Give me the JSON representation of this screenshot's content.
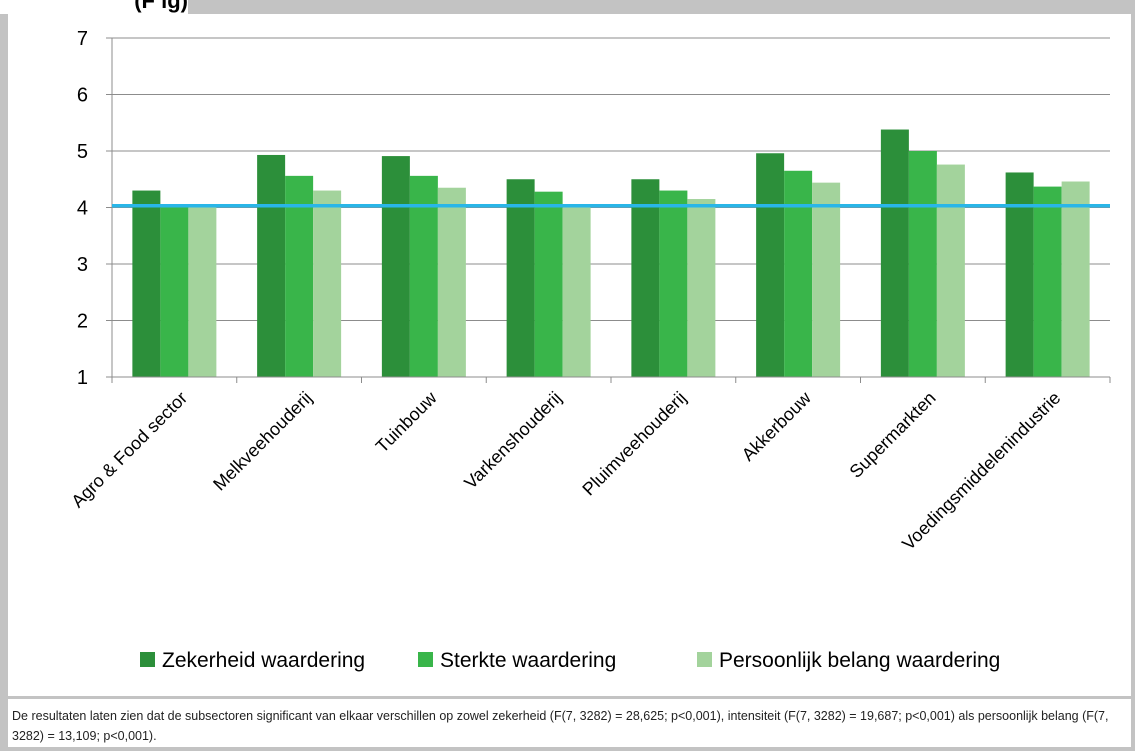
{
  "header": {
    "title_fragment": "(F ig)"
  },
  "chart_data": {
    "type": "bar",
    "categories": [
      "Agro & Food sector",
      "Melkveehouderij",
      "Tuinbouw",
      "Varkenshouderij",
      "Pluimveehouderij",
      "Akkerbouw",
      "Supermarkten",
      "Voedingsmiddelenindustrie"
    ],
    "series": [
      {
        "name": "Zekerheid waardering",
        "color": "#2c8f3a",
        "values": [
          4.3,
          4.93,
          4.91,
          4.5,
          4.5,
          4.96,
          5.38,
          4.62
        ]
      },
      {
        "name": "Sterkte waardering",
        "color": "#39b54a",
        "values": [
          4.03,
          4.56,
          4.56,
          4.28,
          4.3,
          4.65,
          5.0,
          4.37
        ]
      },
      {
        "name": "Persoonlijk belang waardering",
        "color": "#a3d39c",
        "values": [
          4.02,
          4.3,
          4.35,
          4.02,
          4.15,
          4.44,
          4.76,
          4.46
        ]
      }
    ],
    "ylim": [
      1,
      7
    ],
    "yticks": [
      1,
      2,
      3,
      4,
      5,
      6,
      7
    ],
    "reference_line": {
      "value": 4.03,
      "color": "#29b6e8"
    },
    "grid": true,
    "legend_position": "bottom",
    "title": "",
    "xlabel": "",
    "ylabel": ""
  },
  "footnote": "De resultaten laten zien dat de subsectoren significant van elkaar verschillen op zowel zekerheid (F(7, 3282) = 28,625; p<0,001), intensiteit (F(7, 3282) = 19,687; p<0,001) als persoonlijk belang (F(7, 3282) = 13,109; p<0,001)."
}
